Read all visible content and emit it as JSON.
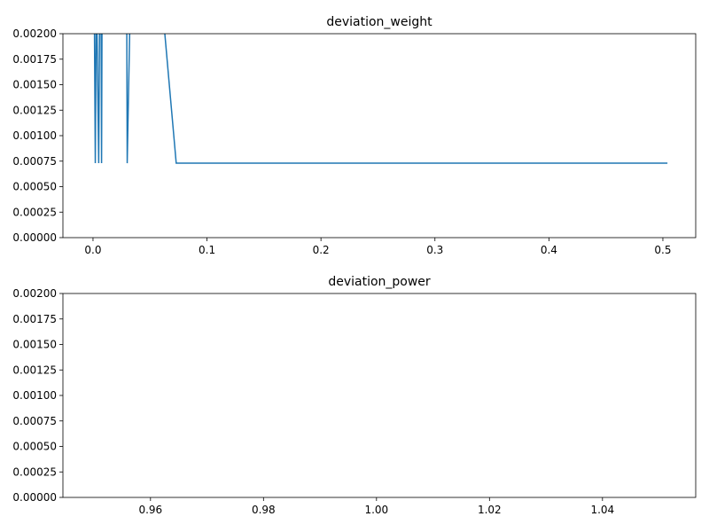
{
  "chart_data": [
    {
      "type": "line",
      "title": "deviation_weight",
      "series": [
        {
          "name": null,
          "color": "#1f77b4",
          "x": [
            0.001,
            0.002,
            0.003,
            0.005,
            0.006,
            0.007,
            0.0075,
            0.008,
            0.0295,
            0.03,
            0.033,
            0.063,
            0.073,
            0.504
          ],
          "values": [
            0.0025,
            0.00073,
            0.0025,
            0.00073,
            0.0025,
            0.0025,
            0.00073,
            0.0025,
            0.0025,
            0.00073,
            0.0025,
            0.002,
            0.00073,
            0.00073
          ]
        }
      ],
      "xlim": [
        -0.0264,
        0.5288
      ],
      "xticks": [
        {
          "value": 0,
          "label": "0.0"
        },
        0.1,
        0.2,
        0.3,
        0.4,
        0.5
      ],
      "ylim": [
        0,
        0.002
      ],
      "yticks": [
        {
          "value": 0,
          "label": "0.00000"
        },
        {
          "value": 0.00025,
          "label": "0.00025"
        },
        {
          "value": 0.0005,
          "label": "0.00050"
        },
        {
          "value": 0.00075,
          "label": "0.00075"
        },
        {
          "value": 0.001,
          "label": "0.00100"
        },
        {
          "value": 0.00125,
          "label": "0.00125"
        },
        {
          "value": 0.0015,
          "label": "0.00150"
        },
        {
          "value": 0.00175,
          "label": "0.00175"
        },
        {
          "value": 0.002,
          "label": "0.00200"
        }
      ]
    },
    {
      "type": "line",
      "title": "deviation_power",
      "xlim": [
        0.9445,
        1.0565
      ],
      "xticks": [
        0.96,
        0.98,
        {
          "value": 1,
          "label": "1.00"
        },
        1.02,
        1.04
      ],
      "ylim": [
        0,
        0.002
      ],
      "yticks": [
        {
          "value": 0,
          "label": "0.00000"
        },
        {
          "value": 0.00025,
          "label": "0.00025"
        },
        {
          "value": 0.0005,
          "label": "0.00050"
        },
        {
          "value": 0.00075,
          "label": "0.00075"
        },
        {
          "value": 0.001,
          "label": "0.00100"
        },
        {
          "value": 0.00125,
          "label": "0.00125"
        },
        {
          "value": 0.0015,
          "label": "0.00150"
        },
        {
          "value": 0.00175,
          "label": "0.00175"
        },
        {
          "value": 0.002,
          "label": "0.00200"
        }
      ]
    }
  ]
}
